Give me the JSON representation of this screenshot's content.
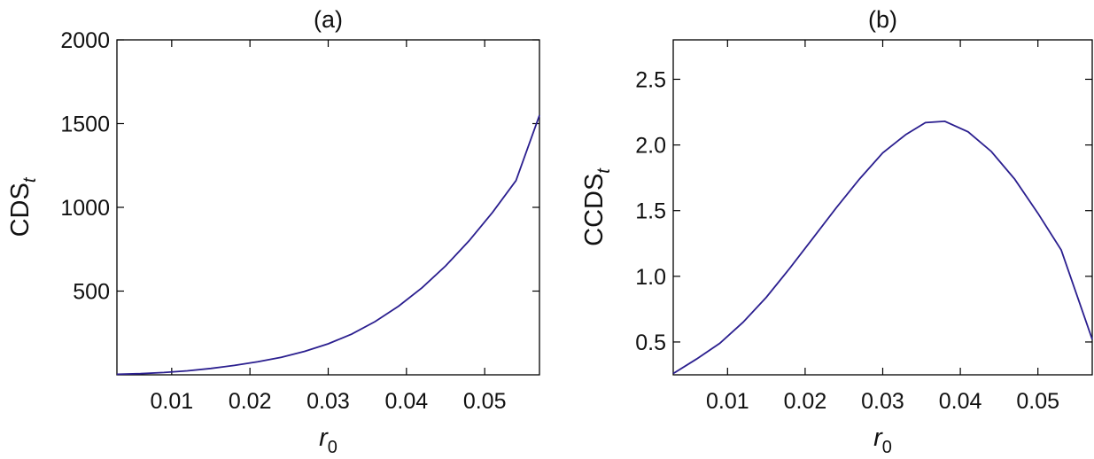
{
  "chart_data": [
    {
      "type": "line",
      "title": "(a)",
      "xlabel": {
        "main": "r",
        "sub": "0"
      },
      "ylabel": {
        "main": "CDS",
        "sub": "t"
      },
      "xlim": [
        0.003,
        0.057
      ],
      "ylim": [
        0,
        2000
      ],
      "xticks": [
        0.01,
        0.02,
        0.03,
        0.04,
        0.05
      ],
      "xtick_labels": [
        "0.01",
        "0.02",
        "0.03",
        "0.04",
        "0.05"
      ],
      "yticks": [
        500,
        1000,
        1500,
        2000
      ],
      "ytick_labels": [
        "500",
        "1000",
        "1500",
        "2000"
      ],
      "grid": false,
      "series": [
        {
          "color": "#2b1f8f",
          "x": [
            0.003,
            0.006,
            0.009,
            0.012,
            0.015,
            0.018,
            0.021,
            0.024,
            0.027,
            0.03,
            0.033,
            0.036,
            0.039,
            0.042,
            0.045,
            0.048,
            0.051,
            0.054,
            0.057
          ],
          "y": [
            3,
            7,
            14,
            24,
            38,
            56,
            78,
            105,
            140,
            185,
            243,
            318,
            410,
            520,
            650,
            800,
            970,
            1160,
            1550
          ]
        }
      ]
    },
    {
      "type": "line",
      "title": "(b)",
      "xlabel": {
        "main": "r",
        "sub": "0"
      },
      "ylabel": {
        "main": "CCDS",
        "sub": "t"
      },
      "xlim": [
        0.003,
        0.057
      ],
      "ylim": [
        0.25,
        2.8
      ],
      "xticks": [
        0.01,
        0.02,
        0.03,
        0.04,
        0.05
      ],
      "xtick_labels": [
        "0.01",
        "0.02",
        "0.03",
        "0.04",
        "0.05"
      ],
      "yticks": [
        0.5,
        1.0,
        1.5,
        2.0,
        2.5
      ],
      "ytick_labels": [
        "0.5",
        "1.0",
        "1.5",
        "2.0",
        "2.5"
      ],
      "grid": false,
      "series": [
        {
          "color": "#2b1f8f",
          "x": [
            0.003,
            0.006,
            0.009,
            0.012,
            0.015,
            0.018,
            0.021,
            0.024,
            0.027,
            0.03,
            0.033,
            0.0355,
            0.038,
            0.041,
            0.044,
            0.047,
            0.05,
            0.053,
            0.057
          ],
          "y": [
            0.26,
            0.37,
            0.49,
            0.65,
            0.84,
            1.06,
            1.29,
            1.52,
            1.74,
            1.94,
            2.08,
            2.17,
            2.18,
            2.1,
            1.95,
            1.74,
            1.48,
            1.2,
            0.52
          ]
        }
      ]
    }
  ]
}
